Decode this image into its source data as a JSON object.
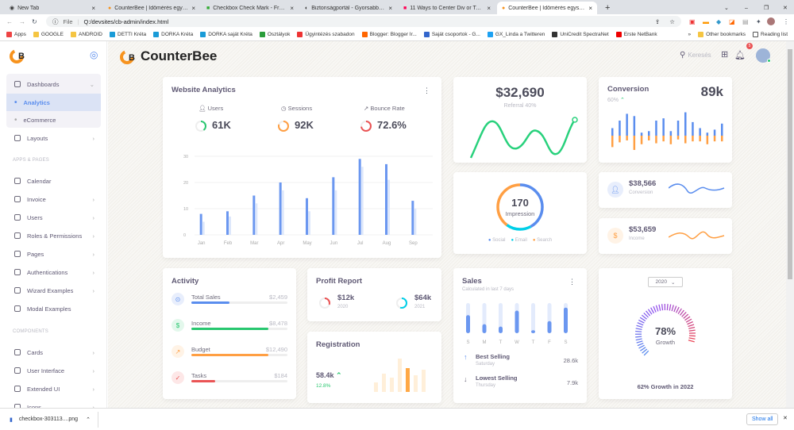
{
  "browser": {
    "tabs": [
      {
        "label": "New Tab"
      },
      {
        "label": "CounterBee | Időmérés egyszerű"
      },
      {
        "label": "Checkbox Check Mark - Free vec"
      },
      {
        "label": "Biztonságportál - Gyorsabbá vált"
      },
      {
        "label": "11 Ways to Center Div or Text in"
      },
      {
        "label": "CounterBee | Időmérés egyszerű"
      }
    ],
    "active_tab": 5,
    "url_scheme": "File",
    "url": "Q:/devsites/cb-admin/index.html",
    "bookmarks": [
      "Apps",
      "GOOGLE",
      "ANDROID",
      "DETTI Kréta",
      "DORKA Kréta",
      "DORKA saját Kréta",
      "Osztályok",
      "Ügyintézés szabadon",
      "Blogger: Blogger Ir...",
      "Saját csoportok - G...",
      "GX_Linda a Twitteren",
      "UniCredit SpectraNet",
      "Erste NetBank"
    ],
    "other_bookmarks": "Other bookmarks",
    "reading_list": "Reading list",
    "download": {
      "file": "checkbox-303113....png",
      "show_all": "Show all"
    }
  },
  "header": {
    "brand": "CounterBee",
    "search": "Keresés",
    "notifications": "5"
  },
  "sidebar": {
    "dashboards": "Dashboards",
    "analytics": "Analytics",
    "ecommerce": "eCommerce",
    "layouts": "Layouts",
    "section_apps": "APPS & PAGES",
    "apps": [
      {
        "label": "Calendar",
        "chev": false
      },
      {
        "label": "Invoice",
        "chev": true
      },
      {
        "label": "Users",
        "chev": true
      },
      {
        "label": "Roles & Permissions",
        "chev": true
      },
      {
        "label": "Pages",
        "chev": true
      },
      {
        "label": "Authentications",
        "chev": true
      },
      {
        "label": "Wizard Examples",
        "chev": true
      },
      {
        "label": "Modal Examples",
        "chev": false
      }
    ],
    "section_components": "COMPONENTS",
    "components": [
      {
        "label": "Cards"
      },
      {
        "label": "User Interface"
      },
      {
        "label": "Extended UI"
      },
      {
        "label": "Icons"
      }
    ]
  },
  "analytics": {
    "title": "Website Analytics",
    "stats": [
      {
        "label": "Users",
        "value": "61K",
        "fraction": 0.4,
        "color": "#28c76f"
      },
      {
        "label": "Sessions",
        "value": "92K",
        "fraction": 0.8,
        "color": "#ff9f43"
      },
      {
        "label": "Bounce Rate",
        "value": "72.6%",
        "fraction": 0.726,
        "color": "#ea5455"
      }
    ],
    "chart_data": {
      "type": "bar",
      "categories": [
        "Jan",
        "Feb",
        "Mar",
        "Apr",
        "May",
        "Jun",
        "Jul",
        "Aug",
        "Sep"
      ],
      "yticks": [
        "0",
        "10",
        "20",
        "30"
      ],
      "ylim": [
        0,
        30
      ],
      "series": [
        {
          "values": [
            8,
            9,
            15,
            20,
            14,
            22,
            29,
            27,
            13
          ],
          "color": "#6b97f0"
        },
        {
          "values": [
            5,
            7,
            12,
            17,
            9,
            17,
            26,
            21,
            10
          ],
          "color": "#dde7fb"
        }
      ]
    }
  },
  "referral": {
    "value": "$32,690",
    "label": "Referral 40%"
  },
  "conversion": {
    "title": "Conversion",
    "pct": "60%",
    "value": "89k",
    "up": [
      10,
      20,
      29,
      26,
      4,
      6,
      20,
      23,
      6,
      20,
      31,
      18,
      10,
      4,
      8,
      16
    ],
    "down": [
      12,
      7,
      5,
      15,
      9,
      5,
      8,
      6,
      9,
      4,
      8,
      6,
      6,
      9,
      6,
      6
    ]
  },
  "impression": {
    "value": "170",
    "label": "Impression",
    "legend": [
      {
        "label": "Social",
        "color": "#5a8dee",
        "fraction": 0.42
      },
      {
        "label": "Email",
        "color": "#00cfe8",
        "fraction": 0.18
      },
      {
        "label": "Search",
        "color": "#ff9f43",
        "fraction": 0.4
      }
    ]
  },
  "mini": [
    {
      "value": "$38,566",
      "label": "Conversion",
      "color": "#5a8dee",
      "bg": "#e8eefc",
      "icon": "user"
    },
    {
      "value": "$53,659",
      "label": "Income",
      "color": "#ff9f43",
      "bg": "#fff3e6",
      "icon": "$"
    }
  ],
  "activity": {
    "title": "Activity",
    "items": [
      {
        "label": "Total Sales",
        "value": "$2,459",
        "progress": 0.4,
        "color": "#5a8dee",
        "bg": "#e8eefc",
        "icon": "⊙"
      },
      {
        "label": "Income",
        "value": "$8,478",
        "progress": 0.8,
        "color": "#28c76f",
        "bg": "#e3f8ec",
        "icon": "$"
      },
      {
        "label": "Budget",
        "value": "$12,490",
        "progress": 0.8,
        "color": "#ff9f43",
        "bg": "#fff3e6",
        "icon": "↗"
      },
      {
        "label": "Tasks",
        "value": "$184",
        "progress": 0.25,
        "color": "#ea5455",
        "bg": "#fde7e7",
        "icon": "✓"
      }
    ]
  },
  "profit": {
    "title": "Profit Report",
    "items": [
      {
        "value": "$12k",
        "year": "2020",
        "fraction": 0.3,
        "color": "#ea5455"
      },
      {
        "value": "$64k",
        "year": "2021",
        "fraction": 0.55,
        "color": "#00cfe8"
      }
    ]
  },
  "registration": {
    "title": "Registration",
    "value": "58.4k",
    "pct": "12.8%",
    "bars": [
      12,
      23,
      18,
      42,
      30,
      21,
      28
    ],
    "highlight": 4
  },
  "sales": {
    "title": "Sales",
    "subtitle": "Calculated in last 7 days",
    "days": [
      "S",
      "M",
      "T",
      "W",
      "T",
      "F",
      "S"
    ],
    "values": [
      60,
      30,
      22,
      75,
      10,
      40,
      85
    ],
    "best": {
      "label": "Best Selling",
      "day": "Saturday",
      "value": "28.6k"
    },
    "lowest": {
      "label": "Lowest Selling",
      "day": "Thursday",
      "value": "7.9k"
    }
  },
  "growth": {
    "year": "2020",
    "value": "78%",
    "label": "Growth",
    "fraction": 0.78,
    "footer": "62% Growth in 2022"
  }
}
